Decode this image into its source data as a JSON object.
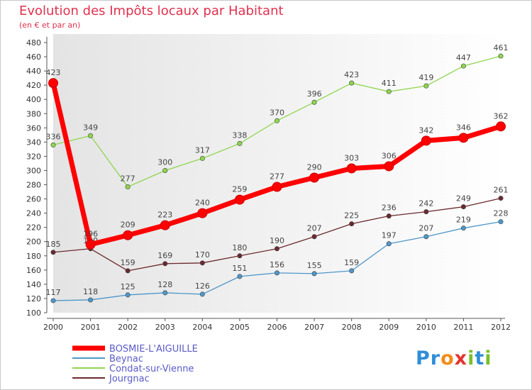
{
  "header": {
    "title": "Evolution des Impôts locaux par Habitant",
    "subtitle": "(en € et par an)"
  },
  "brand": {
    "logo_text": "Proxiti"
  },
  "chart_data": {
    "type": "line",
    "title": "Evolution des Impôts locaux par Habitant",
    "subtitle": "(en € et par an)",
    "xlabel": "",
    "ylabel": "",
    "x": [
      "2000",
      "2001",
      "2002",
      "2003",
      "2004",
      "2005",
      "2006",
      "2007",
      "2008",
      "2009",
      "2010",
      "2011",
      "2012"
    ],
    "ylim": [
      100,
      480
    ],
    "yticks": [
      100,
      120,
      140,
      160,
      180,
      200,
      220,
      240,
      260,
      280,
      300,
      320,
      340,
      360,
      380,
      400,
      420,
      440,
      460,
      480
    ],
    "grid": false,
    "legend_position": "bottom-left",
    "series": [
      {
        "name": "BOSMIE-L'AIGUILLE",
        "color": "#ff0000",
        "emphasis": true,
        "values": [
          423,
          196,
          209,
          223,
          240,
          259,
          277,
          290,
          303,
          306,
          342,
          346,
          362
        ]
      },
      {
        "name": "Beynac",
        "color": "#4f97c9",
        "values": [
          117,
          118,
          125,
          128,
          126,
          151,
          156,
          155,
          159,
          197,
          207,
          219,
          228
        ]
      },
      {
        "name": "Condat-sur-Vienne",
        "color": "#8ed64e",
        "values": [
          336,
          349,
          277,
          300,
          317,
          338,
          370,
          396,
          423,
          411,
          419,
          447,
          461
        ]
      },
      {
        "name": "Jourgnac",
        "color": "#6b2a2e",
        "values": [
          185,
          190,
          159,
          169,
          170,
          180,
          190,
          207,
          225,
          236,
          242,
          249,
          261
        ]
      }
    ]
  }
}
